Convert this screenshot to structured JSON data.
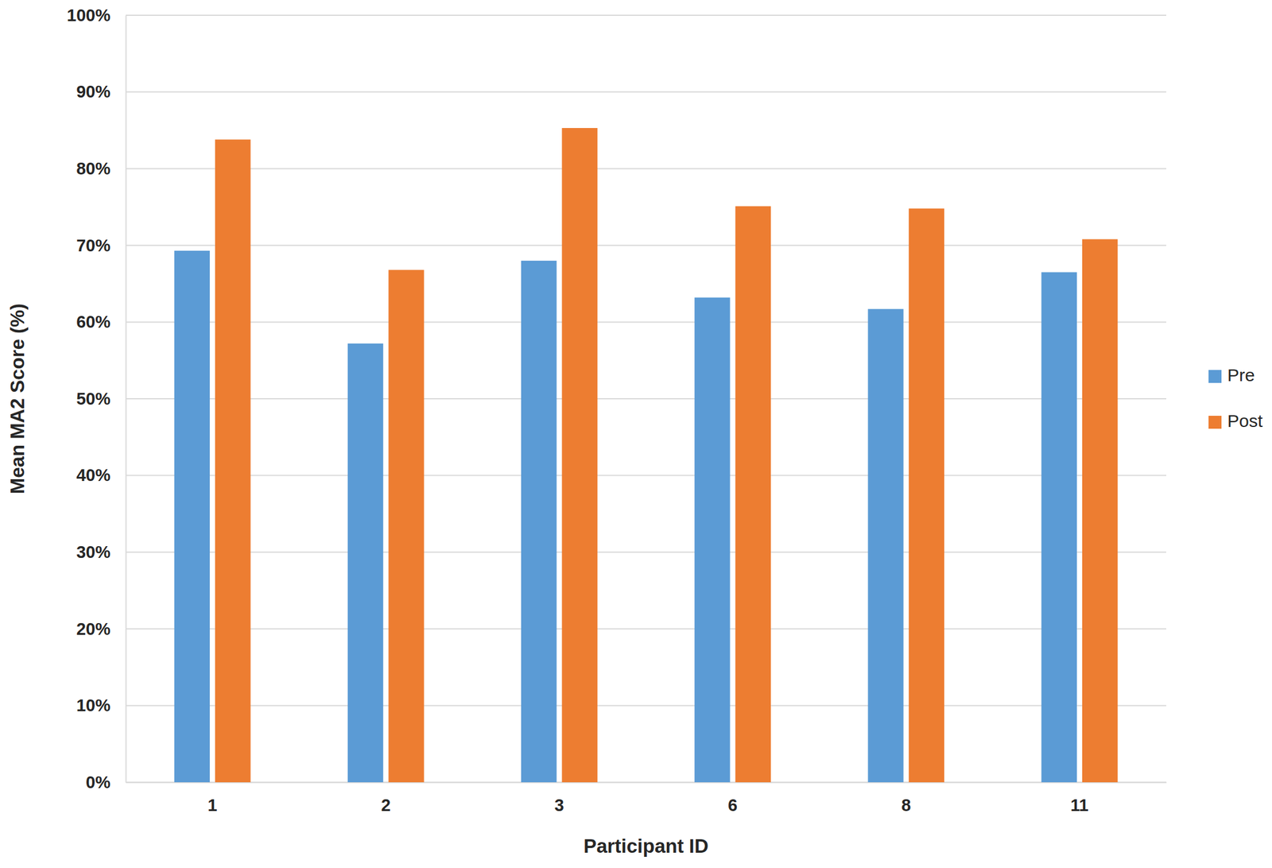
{
  "chart_data": {
    "type": "bar",
    "x_label": "Participant ID",
    "y_label": "Mean MA2 Score (%)",
    "categories": [
      "1",
      "2",
      "3",
      "6",
      "8",
      "11"
    ],
    "series": [
      {
        "name": "Pre",
        "color": "#5b9bd5",
        "values": [
          69.3,
          57.2,
          68.0,
          63.2,
          61.7,
          66.5
        ]
      },
      {
        "name": "Post",
        "color": "#ed7d31",
        "values": [
          83.8,
          66.8,
          85.3,
          75.1,
          74.8,
          70.8
        ]
      }
    ],
    "ylim": [
      0,
      100
    ],
    "yticks": [
      {
        "value": 0,
        "label": "0%"
      },
      {
        "value": 10,
        "label": "10%"
      },
      {
        "value": 20,
        "label": "20%"
      },
      {
        "value": 30,
        "label": "30%"
      },
      {
        "value": 40,
        "label": "40%"
      },
      {
        "value": 50,
        "label": "50%"
      },
      {
        "value": 60,
        "label": "60%"
      },
      {
        "value": 70,
        "label": "70%"
      },
      {
        "value": 80,
        "label": "80%"
      },
      {
        "value": 90,
        "label": "90%"
      },
      {
        "value": 100,
        "label": "100%"
      }
    ],
    "grid": true,
    "legend": "right"
  }
}
